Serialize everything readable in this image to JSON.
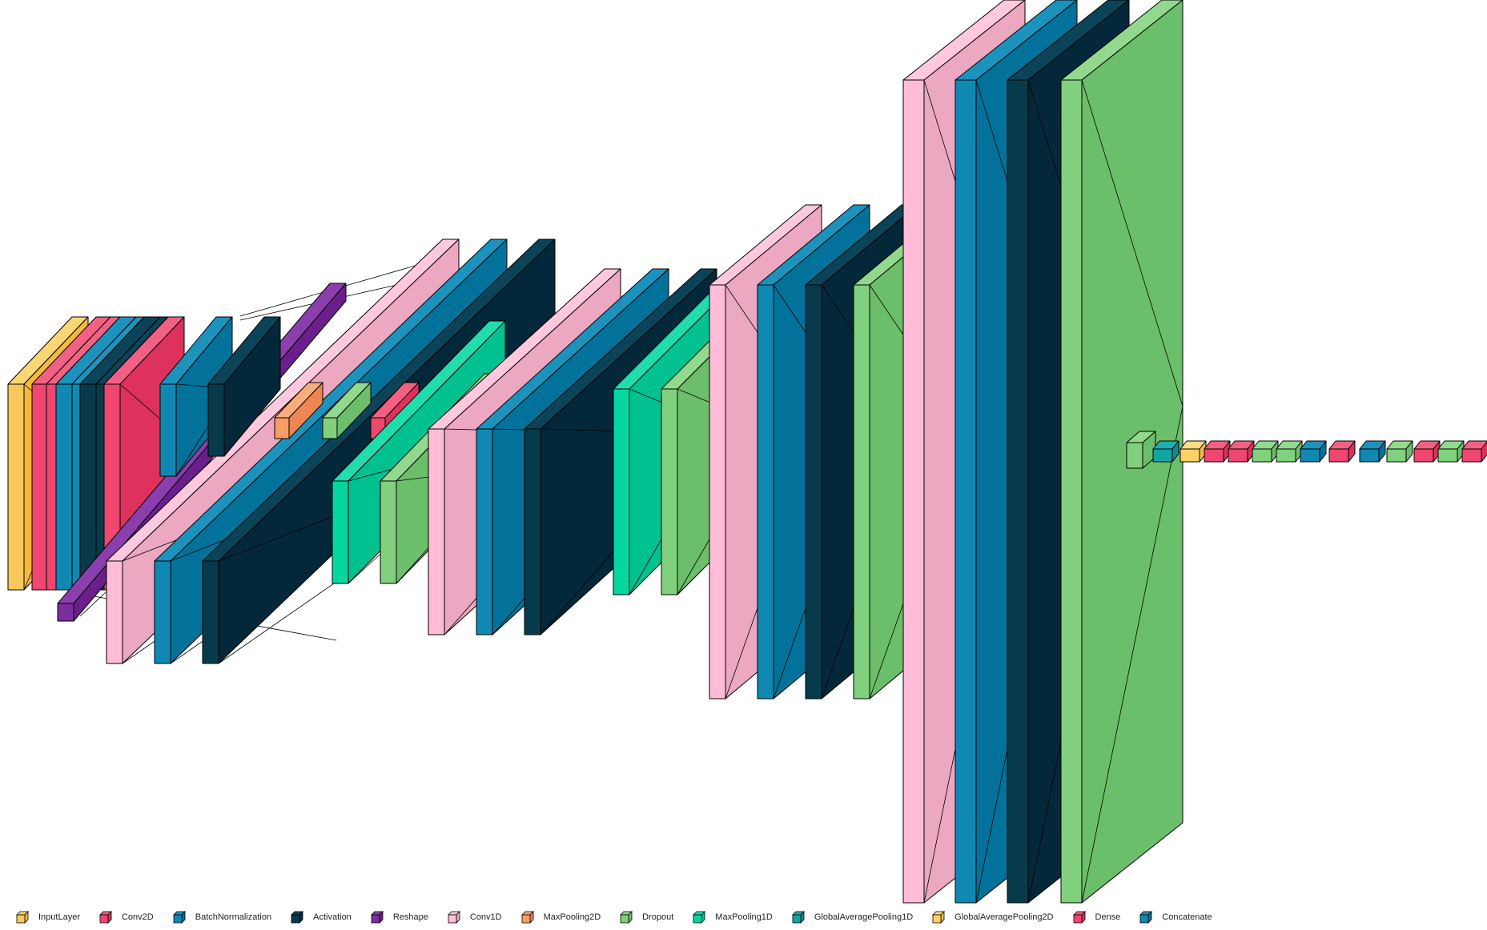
{
  "diagram": {
    "layer_types": {
      "InputLayer": {
        "front": "#f9c85c",
        "side": "#f6b93b",
        "top": "#fbd675"
      },
      "Conv2D": {
        "front": "#ef476f",
        "side": "#de315d",
        "top": "#f26183"
      },
      "BatchNormalization": {
        "front": "#1188b2",
        "side": "#03729a",
        "top": "#1b93bd"
      },
      "Activation": {
        "front": "#073b4c",
        "side": "#02283a",
        "top": "#0b4458"
      },
      "Reshape": {
        "front": "#7b2f9d",
        "side": "#6a1f8c",
        "top": "#8a3fac"
      },
      "Conv1D": {
        "front": "#ffbcd8",
        "side": "#eca8c1",
        "top": "#ffc8de"
      },
      "MaxPooling2D": {
        "front": "#f79d65",
        "side": "#ef8552",
        "top": "#f9ad7d"
      },
      "Dropout": {
        "front": "#81d07d",
        "side": "#6cbf6a",
        "top": "#92d98d"
      },
      "MaxPooling1D": {
        "front": "#06d6a0",
        "side": "#00c18f",
        "top": "#21dcac"
      },
      "GlobalAveragePooling1D": {
        "front": "#13a3a3",
        "side": "#0a8d8d",
        "top": "#1fb0b0"
      },
      "GlobalAveragePooling2D": {
        "front": "#fcd168",
        "side": "#f2bc47",
        "top": "#fddb80"
      },
      "Dense": {
        "front": "#ef476f",
        "side": "#de315d",
        "top": "#f26183"
      },
      "Concatenate": {
        "front": "#1188b2",
        "side": "#03729a",
        "top": "#1b93bd"
      }
    },
    "layers": [
      {
        "type": "InputLayer"
      },
      {
        "type": "Conv2D"
      },
      {
        "type": "Conv2D"
      },
      {
        "type": "BatchNormalization"
      },
      {
        "type": "BatchNormalization"
      },
      {
        "type": "Activation"
      },
      {
        "type": "Activation"
      },
      {
        "type": "Conv2D"
      },
      {
        "type": "Reshape"
      },
      {
        "type": "Conv1D"
      },
      {
        "type": "BatchNormalization"
      },
      {
        "type": "Activation"
      },
      {
        "type": "BatchNormalization"
      },
      {
        "type": "Activation"
      },
      {
        "type": "MaxPooling2D"
      },
      {
        "type": "Dropout"
      },
      {
        "type": "Conv2D"
      },
      {
        "type": "BatchNormalization"
      },
      {
        "type": "MaxPooling1D"
      },
      {
        "type": "Dropout"
      },
      {
        "type": "Conv1D"
      },
      {
        "type": "BatchNormalization"
      },
      {
        "type": "Activation"
      },
      {
        "type": "MaxPooling1D"
      },
      {
        "type": "Dropout"
      },
      {
        "type": "Conv1D"
      },
      {
        "type": "BatchNormalization"
      },
      {
        "type": "Activation"
      },
      {
        "type": "Dropout"
      },
      {
        "type": "Conv1D"
      },
      {
        "type": "BatchNormalization"
      },
      {
        "type": "Activation"
      },
      {
        "type": "Dropout"
      },
      {
        "type": "Dropout"
      },
      {
        "type": "GlobalAveragePooling1D"
      },
      {
        "type": "GlobalAveragePooling2D"
      },
      {
        "type": "Dense"
      },
      {
        "type": "Dense"
      },
      {
        "type": "Dropout"
      },
      {
        "type": "Dropout"
      },
      {
        "type": "Concatenate"
      },
      {
        "type": "Dense"
      },
      {
        "type": "BatchNormalization"
      },
      {
        "type": "Dropout"
      },
      {
        "type": "Dense"
      },
      {
        "type": "Dropout"
      },
      {
        "type": "Dense"
      }
    ]
  },
  "legend": {
    "items": [
      {
        "label": "InputLayer",
        "type": "InputLayer"
      },
      {
        "label": "Conv2D",
        "type": "Conv2D"
      },
      {
        "label": "BatchNormalization",
        "type": "BatchNormalization"
      },
      {
        "label": "Activation",
        "type": "Activation"
      },
      {
        "label": "Reshape",
        "type": "Reshape"
      },
      {
        "label": "Conv1D",
        "type": "Conv1D"
      },
      {
        "label": "MaxPooling2D",
        "type": "MaxPooling2D"
      },
      {
        "label": "Dropout",
        "type": "Dropout"
      },
      {
        "label": "MaxPooling1D",
        "type": "MaxPooling1D"
      },
      {
        "label": "GlobalAveragePooling1D",
        "type": "GlobalAveragePooling1D"
      },
      {
        "label": "GlobalAveragePooling2D",
        "type": "GlobalAveragePooling2D"
      },
      {
        "label": "Dense",
        "type": "Dense"
      },
      {
        "label": "Concatenate",
        "type": "Concatenate"
      }
    ]
  }
}
